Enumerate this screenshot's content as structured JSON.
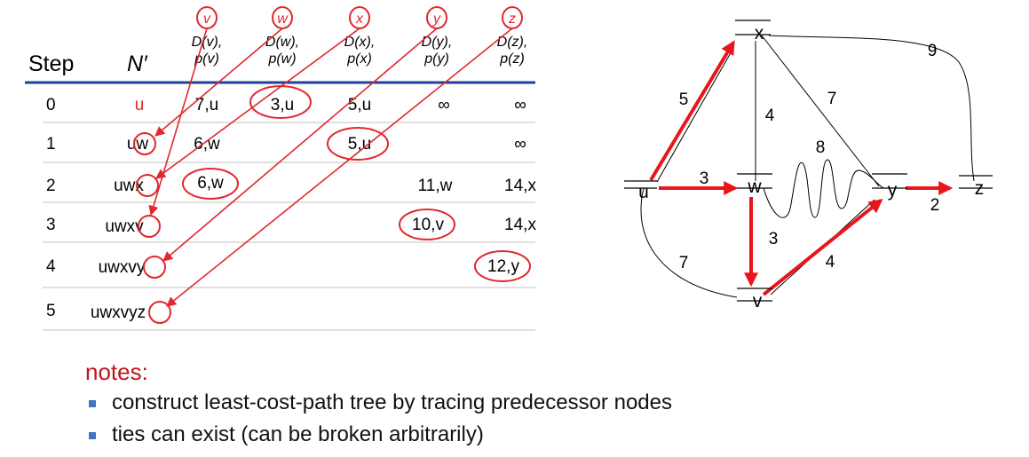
{
  "table": {
    "headers": {
      "step": "Step",
      "nprime": "N′"
    },
    "columns": [
      {
        "node": "v",
        "d": "D(v),",
        "p": "p(v)"
      },
      {
        "node": "w",
        "d": "D(w),",
        "p": "p(w)"
      },
      {
        "node": "x",
        "d": "D(x),",
        "p": "p(x)"
      },
      {
        "node": "y",
        "d": "D(y),",
        "p": "p(y)"
      },
      {
        "node": "z",
        "d": "D(z),",
        "p": "p(z)"
      }
    ],
    "rows": [
      {
        "step": "0",
        "nprime": "u",
        "cells": [
          "7,u",
          "3,u",
          "5,u",
          "∞",
          "∞"
        ]
      },
      {
        "step": "1",
        "nprime": "uw",
        "cells": [
          "6,w",
          "",
          "5,u",
          "",
          "∞"
        ]
      },
      {
        "step": "2",
        "nprime": "uwx",
        "cells": [
          "6,w",
          "",
          "",
          "11,w",
          "14,x"
        ]
      },
      {
        "step": "3",
        "nprime": "uwxv",
        "cells": [
          "",
          "",
          "",
          "10,v",
          "14,x"
        ]
      },
      {
        "step": "4",
        "nprime": "uwxvy",
        "cells": [
          "",
          "",
          "",
          "",
          "12,y"
        ]
      },
      {
        "step": "5",
        "nprime": "uwxvyz",
        "cells": [
          "",
          "",
          "",
          "",
          ""
        ]
      }
    ],
    "colors": {
      "header_rule": "#1f3f9a",
      "highlight": "#e0282e",
      "row_rule": "#c0c0c0"
    }
  },
  "graph": {
    "nodes": [
      "u",
      "v",
      "w",
      "x",
      "y",
      "z"
    ],
    "edges": [
      {
        "from": "u",
        "to": "x",
        "weight": "5",
        "in_tree": true
      },
      {
        "from": "u",
        "to": "w",
        "weight": "3",
        "in_tree": true
      },
      {
        "from": "u",
        "to": "v",
        "weight": "7",
        "in_tree": false
      },
      {
        "from": "x",
        "to": "w",
        "weight": "4",
        "in_tree": false
      },
      {
        "from": "x",
        "to": "y",
        "weight": "7",
        "in_tree": false
      },
      {
        "from": "x",
        "to": "z",
        "weight": "9",
        "in_tree": false
      },
      {
        "from": "w",
        "to": "y",
        "weight": "8",
        "in_tree": false
      },
      {
        "from": "w",
        "to": "v",
        "weight": "3",
        "in_tree": true
      },
      {
        "from": "v",
        "to": "y",
        "weight": "4",
        "in_tree": true
      },
      {
        "from": "y",
        "to": "z",
        "weight": "2",
        "in_tree": true
      }
    ],
    "tree_color": "#e8161c"
  },
  "notes": {
    "title": "notes:",
    "items": [
      "construct least-cost-path tree by tracing predecessor nodes",
      "ties can exist (can be broken arbitrarily)"
    ],
    "bullet_color": "#4472c4"
  }
}
